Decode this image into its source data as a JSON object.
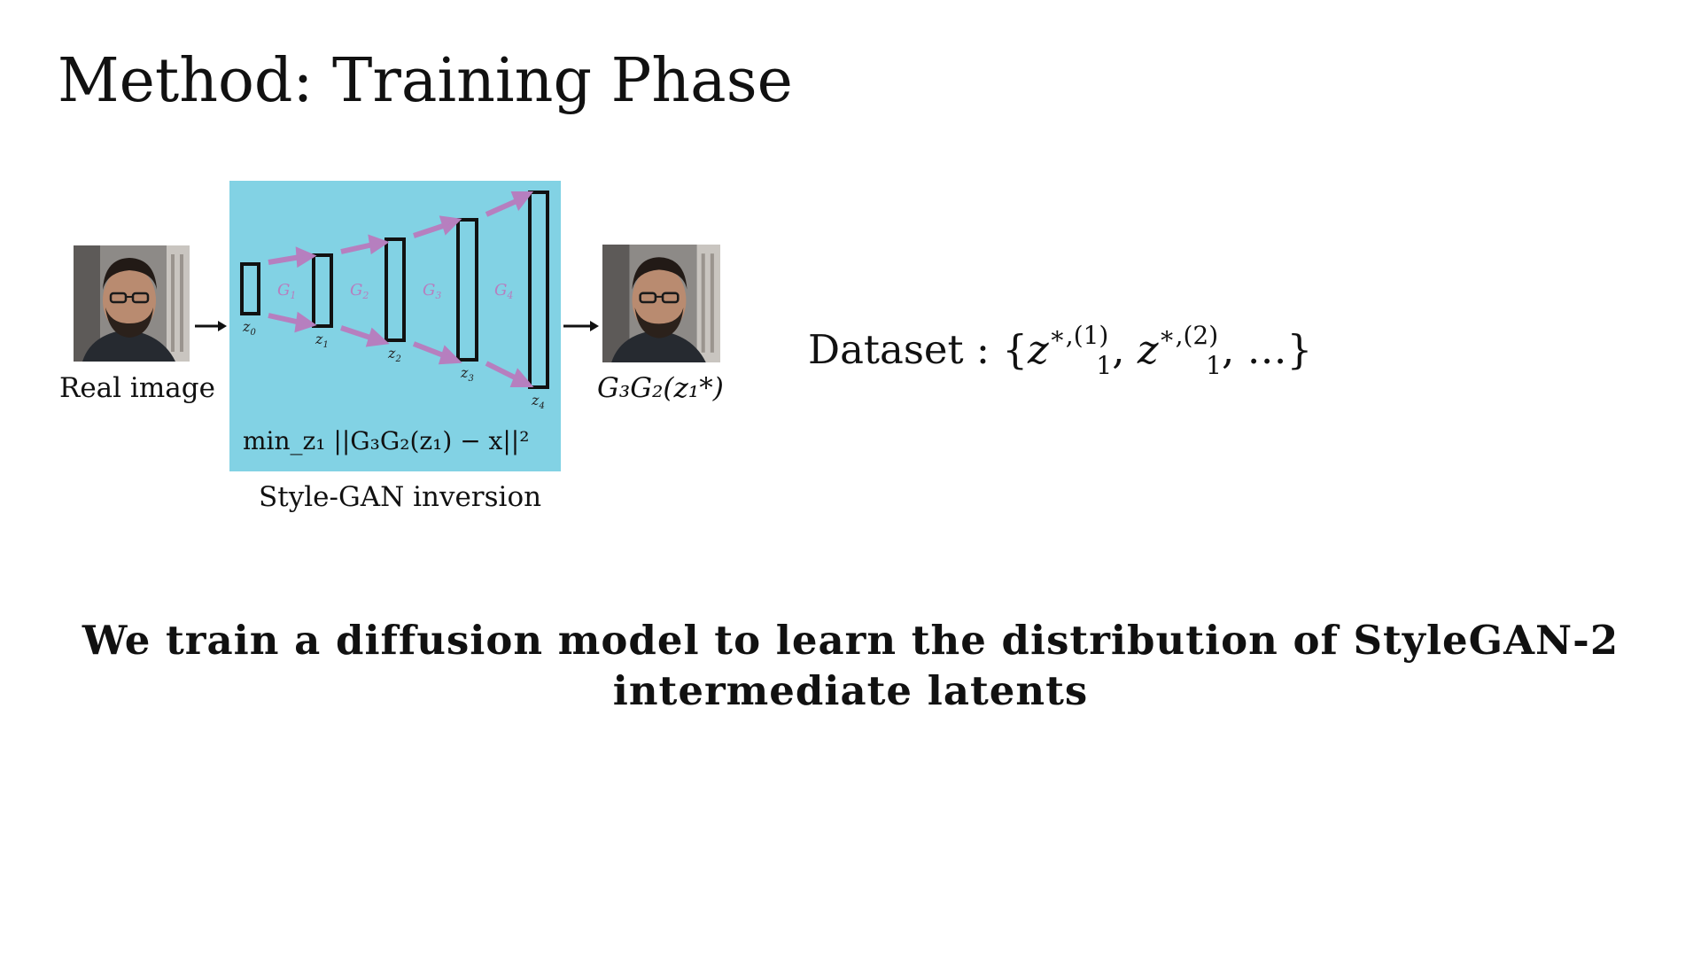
{
  "slide": {
    "title": "Method: Training Phase",
    "real_image_label": "Real image",
    "output_label": "G₃G₂(z₁*)",
    "inversion_label": "Style-GAN inversion",
    "objective": "min_z₁ ||G₃G₂(z₁) − x||²",
    "dataset_label": "Dataset :",
    "dataset_z": "z",
    "dataset_sup1": "∗,(1)",
    "dataset_sup2": "∗,(2)",
    "dataset_sub": "1",
    "dataset_tail": "…}",
    "bottom_line1": "We train a diffusion model to learn the distribution of StyleGAN-2",
    "bottom_line2": "intermediate latents"
  },
  "diagram": {
    "box_color": "#82d2e4",
    "arrow_color": "#b67fbf",
    "layers": [
      "z0",
      "z1",
      "z2",
      "z3",
      "z4"
    ],
    "generators": [
      "G1",
      "G2",
      "G3",
      "G4"
    ]
  }
}
